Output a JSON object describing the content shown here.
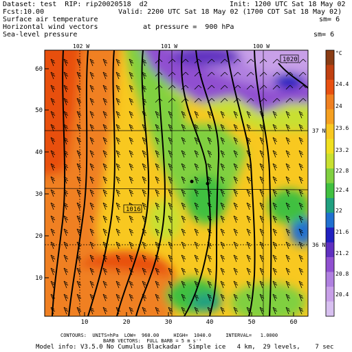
{
  "header": {
    "dataset_line": "Dataset: test  RIP: rip20020518  d2",
    "init_line": "Init: 1200 UTC Sat 18 May 02",
    "fcst_label": "Fcst:",
    "fcst_value": "10.00",
    "valid_line": "Valid: 2200 UTC Sat 18 May 02 (1700 CDT Sat 18 May 02)",
    "field1": "Surface air temperature",
    "field2": "Horizontal wind vectors",
    "field3": "Sea-level pressure",
    "pressure_text": "at pressure =  900 hPa",
    "sm1": "sm= 6",
    "sm2": "sm= 6"
  },
  "map": {
    "x_ticks": [
      "10",
      "20",
      "30",
      "40",
      "50",
      "60"
    ],
    "y_ticks": [
      "10",
      "20",
      "30",
      "40",
      "50",
      "60"
    ],
    "longitude_labels": [
      "102 W",
      "101 W",
      "100 W"
    ],
    "latitude_labels": [
      "37 N",
      "36 N"
    ],
    "isobar_labels": [
      "1016",
      "1020"
    ]
  },
  "colorbar": {
    "unit": "°C",
    "labels": [
      "24.4",
      "24",
      "23.6",
      "23.2",
      "22.8",
      "22.4",
      "22",
      "21.6",
      "21.2",
      "20.8",
      "20.4"
    ],
    "colors": [
      "#8a3c14",
      "#c04010",
      "#e85010",
      "#f08020",
      "#f5a020",
      "#f8c820",
      "#f0e020",
      "#c8e030",
      "#80d040",
      "#40c040",
      "#20a080",
      "#2070d0",
      "#2020c0",
      "#6030c0",
      "#9050d0",
      "#b080e0",
      "#c8a0e8",
      "#d8c0f0"
    ]
  },
  "footer": {
    "line1": "CONTOURS:  UNITS=hPa  LOW=  960.00     HIGH=  1040.0     INTERVAL=   1.0000",
    "line2": "BARB VECTORS:  FULL BARB = 5 m s⁻¹",
    "line3": "Model info: V3.5.0 No Cumulus Blackadar  Simple ice   4 km,  29 levels,    7 sec"
  }
}
